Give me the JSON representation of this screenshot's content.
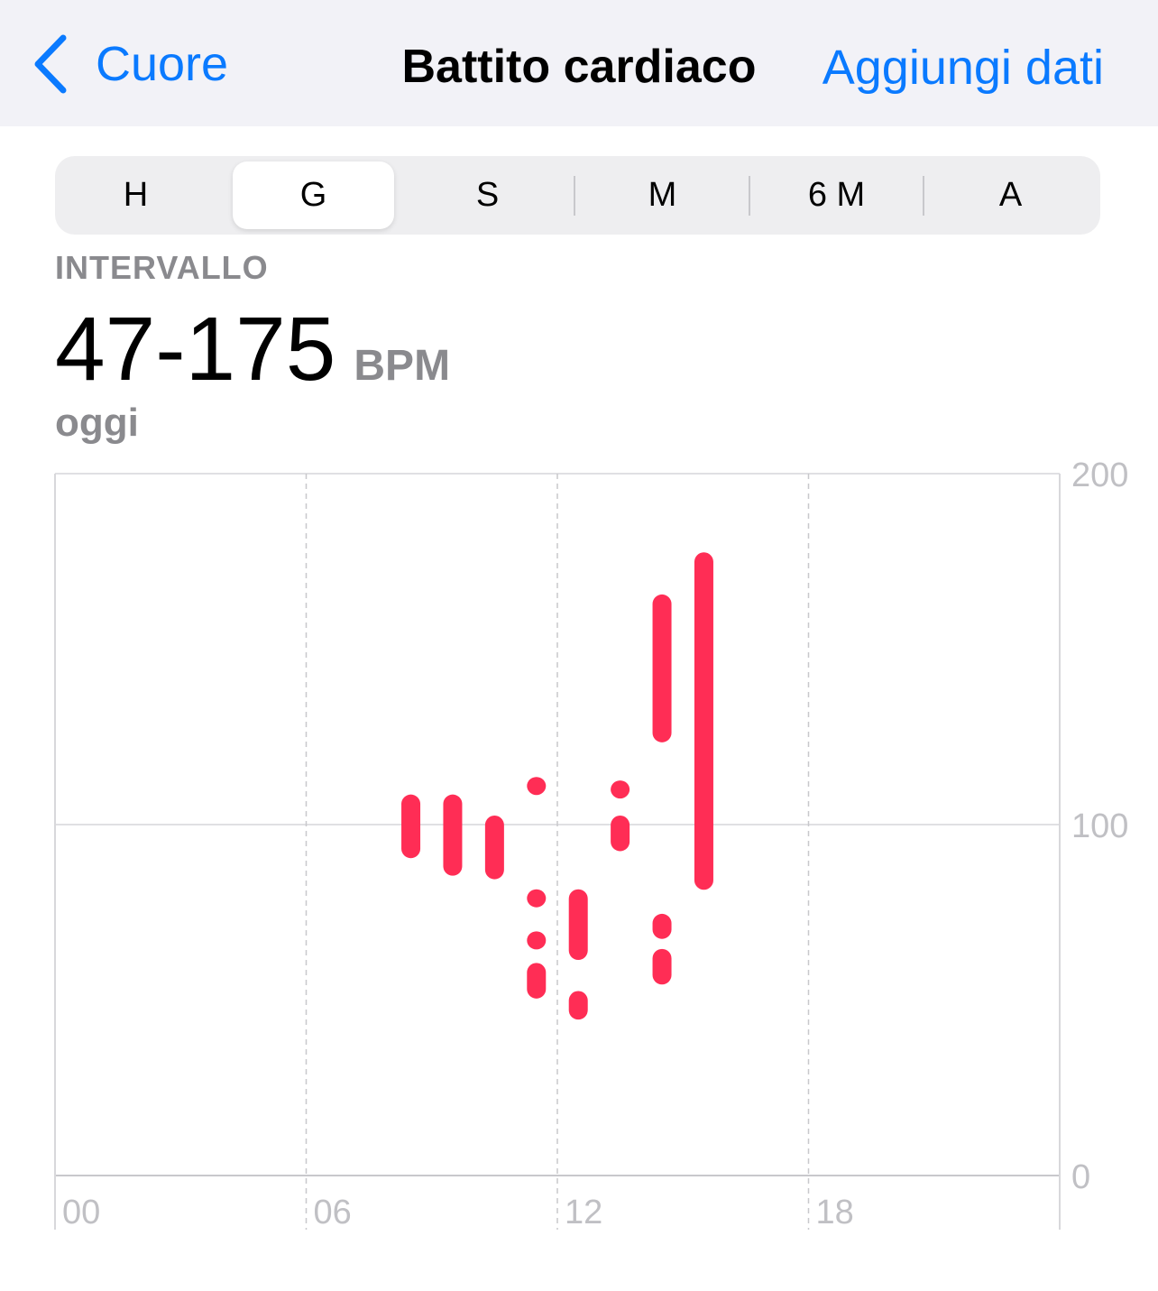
{
  "nav": {
    "back_label": "Cuore",
    "title": "Battito cardiaco",
    "add_label": "Aggiungi dati"
  },
  "segments": [
    {
      "label": "H",
      "selected": false
    },
    {
      "label": "G",
      "selected": true
    },
    {
      "label": "S",
      "selected": false
    },
    {
      "label": "M",
      "selected": false
    },
    {
      "label": "6 M",
      "selected": false
    },
    {
      "label": "A",
      "selected": false
    }
  ],
  "summary": {
    "label": "INTERVALLO",
    "value": "47-175",
    "unit": "BPM",
    "date": "oggi"
  },
  "colors": {
    "accent": "#0A7AFF",
    "series": "#FF2D55"
  },
  "chart_data": {
    "type": "range-bar",
    "x_ticks": [
      "00",
      "06",
      "12",
      "18"
    ],
    "xlim": [
      0,
      24
    ],
    "y_ticks": [
      "200",
      "100",
      "0"
    ],
    "ylim": [
      0,
      200
    ],
    "grid": true,
    "ranges": [
      {
        "hour": 8.5,
        "min": 93,
        "max": 106
      },
      {
        "hour": 9.5,
        "min": 88,
        "max": 106
      },
      {
        "hour": 10.5,
        "min": 87,
        "max": 100
      },
      {
        "hour": 11.5,
        "min": 111,
        "max": 111
      },
      {
        "hour": 11.5,
        "min": 79,
        "max": 79
      },
      {
        "hour": 11.5,
        "min": 67,
        "max": 67
      },
      {
        "hour": 11.5,
        "min": 53,
        "max": 58
      },
      {
        "hour": 12.5,
        "min": 64,
        "max": 79
      },
      {
        "hour": 12.5,
        "min": 47,
        "max": 50
      },
      {
        "hour": 13.5,
        "min": 110,
        "max": 110
      },
      {
        "hour": 13.5,
        "min": 95,
        "max": 100
      },
      {
        "hour": 14.5,
        "min": 126,
        "max": 163
      },
      {
        "hour": 14.5,
        "min": 70,
        "max": 72
      },
      {
        "hour": 14.5,
        "min": 57,
        "max": 62
      },
      {
        "hour": 15.5,
        "min": 84,
        "max": 175
      }
    ]
  }
}
